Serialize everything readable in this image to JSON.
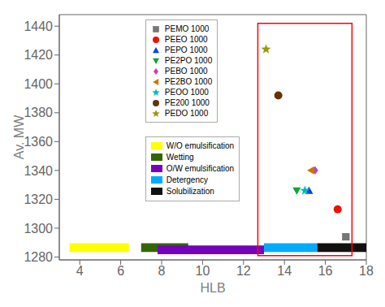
{
  "chart_data": {
    "type": "scatter",
    "xlabel": "HLB",
    "ylabel": "Av. MW",
    "xlim": [
      3,
      18
    ],
    "ylim": [
      1278,
      1448
    ],
    "xticks": [
      4,
      6,
      8,
      10,
      12,
      14,
      16,
      18
    ],
    "yticks": [
      1280,
      1300,
      1320,
      1340,
      1360,
      1380,
      1400,
      1420,
      1440
    ],
    "grid": false,
    "series": [
      {
        "name": "PEMO 1000",
        "x": 17.0,
        "y": 1294,
        "color": "#777777",
        "marker": "square"
      },
      {
        "name": "PEEO 1000",
        "x": 16.6,
        "y": 1313,
        "color": "#ee1100",
        "marker": "circle"
      },
      {
        "name": "PEPO 1000",
        "x": 15.2,
        "y": 1326,
        "color": "#0044dd",
        "marker": "triangle-up"
      },
      {
        "name": "PE2PO 1000",
        "x": 14.6,
        "y": 1326,
        "color": "#00aa33",
        "marker": "triangle-down"
      },
      {
        "name": "PEBO 1000",
        "x": 15.5,
        "y": 1340,
        "color": "#bb44bb",
        "marker": "diamond"
      },
      {
        "name": "PE2BO 1000",
        "x": 15.3,
        "y": 1340,
        "color": "#cc7700",
        "marker": "triangle-left"
      },
      {
        "name": "PEOO 1000",
        "x": 15.0,
        "y": 1326,
        "color": "#00bbbb",
        "marker": "star"
      },
      {
        "name": "PE200 1000",
        "x": 13.7,
        "y": 1392,
        "color": "#663300",
        "marker": "circle"
      },
      {
        "name": "PEDO 1000",
        "x": 13.1,
        "y": 1424,
        "color": "#999900",
        "marker": "star"
      }
    ],
    "bars": [
      {
        "name": "W/O emulsification",
        "x_start": 3.5,
        "x_end": 6.4,
        "y": 1283.5,
        "height": 6,
        "color": "#ffff00"
      },
      {
        "name": "Wetting",
        "x_start": 7.0,
        "x_end": 9.3,
        "y": 1283.5,
        "height": 6,
        "color": "#336600"
      },
      {
        "name": "O/W emulsification",
        "x_start": 7.8,
        "x_end": 13.0,
        "y": 1282.0,
        "height": 6,
        "color": "#7700bb"
      },
      {
        "name": "Detergency",
        "x_start": 13.0,
        "x_end": 15.6,
        "y": 1283.5,
        "height": 6,
        "color": "#00aaff"
      },
      {
        "name": "Solubilization",
        "x_start": 15.6,
        "x_end": 18.0,
        "y": 1283.5,
        "height": 6,
        "color": "#111111"
      }
    ],
    "red_box": {
      "x": 12.7,
      "y": 1281,
      "width": 4.6,
      "height": 161,
      "color": "red"
    }
  }
}
